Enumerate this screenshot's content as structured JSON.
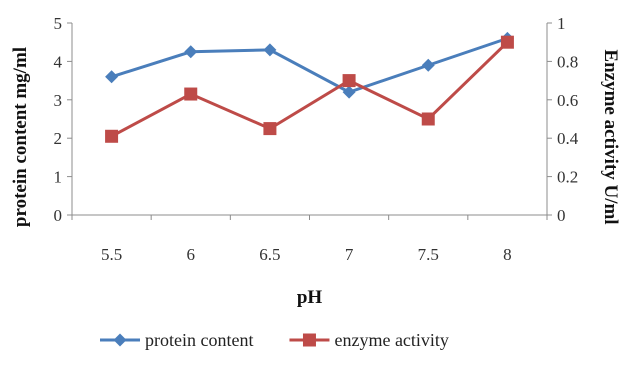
{
  "chart_data": {
    "type": "line",
    "categories": [
      "5.5",
      "6",
      "6.5",
      "7",
      "7.5",
      "8"
    ],
    "xlabel": "pH",
    "y_left": {
      "label": "protein content mg/ml",
      "range": [
        0,
        5
      ],
      "ticks": [
        "0",
        "1",
        "2",
        "3",
        "4",
        "5"
      ]
    },
    "y_right": {
      "label": "Enzyme activity U/ml",
      "range": [
        0,
        1
      ],
      "ticks": [
        "0",
        "0.2",
        "0.4",
        "0.6",
        "0.8",
        "1"
      ]
    },
    "series": [
      {
        "name": "protein content",
        "axis": "left",
        "marker": "diamond",
        "color": "#4a7ebb",
        "values": [
          3.6,
          4.25,
          4.3,
          3.2,
          3.9,
          4.6
        ]
      },
      {
        "name": "enzyme activity",
        "axis": "right",
        "marker": "square",
        "color": "#be4b48",
        "values": [
          0.41,
          0.63,
          0.45,
          0.7,
          0.5,
          0.9
        ]
      }
    ],
    "grid": false,
    "legend_position": "bottom"
  }
}
